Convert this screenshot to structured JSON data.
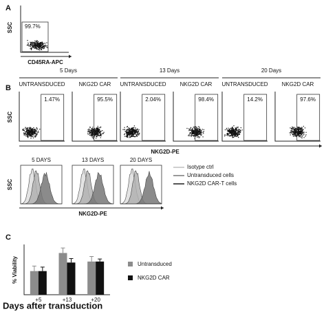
{
  "figure": {
    "a": {
      "label": "A",
      "y_label": "SSC",
      "x_label": "CD45RA-APC",
      "gate": "99.7%"
    },
    "b": {
      "label": "B",
      "y_label": "SSC",
      "x_label": "NKG2D-PE",
      "timepoints": [
        {
          "title": "5 Days",
          "plots": [
            {
              "name": "UNTRANSDUCED",
              "gate": "1.47%"
            },
            {
              "name": "NKG2D CAR",
              "gate": "95.5%"
            }
          ]
        },
        {
          "title": "13 Days",
          "plots": [
            {
              "name": "UNTRANSDUCED",
              "gate": "2.04%"
            },
            {
              "name": "NKG2D CAR",
              "gate": "98.4%"
            }
          ]
        },
        {
          "title": "20 Days",
          "plots": [
            {
              "name": "UNTRANSDUCED",
              "gate": "14.2%"
            },
            {
              "name": "NKG2D CAR",
              "gate": "97.6%"
            }
          ]
        }
      ],
      "histograms": {
        "titles": [
          "5 DAYS",
          "13 DAYS",
          "20 DAYS"
        ],
        "y_label": "SSC",
        "x_label": "NKG2D-PE",
        "legend": [
          "Isotype ctrl",
          "Untransduced cells",
          "NKG2D CAR-T cells"
        ]
      }
    }
  },
  "chart_data": {
    "type": "bar",
    "panel_label": "C",
    "y_label": "% Viability",
    "x_label": "Days after transduction",
    "categories": [
      "+5",
      "+13",
      "+20"
    ],
    "series": [
      {
        "name": "Untransduced",
        "color": "#8c8c8c",
        "values": [
          47,
          83,
          66
        ],
        "errors": [
          10,
          10,
          10
        ]
      },
      {
        "name": "NKG2D CAR",
        "color": "#111111",
        "values": [
          47,
          64,
          66
        ],
        "errors": [
          8,
          8,
          5
        ]
      }
    ],
    "ylim": [
      0,
      100
    ]
  }
}
